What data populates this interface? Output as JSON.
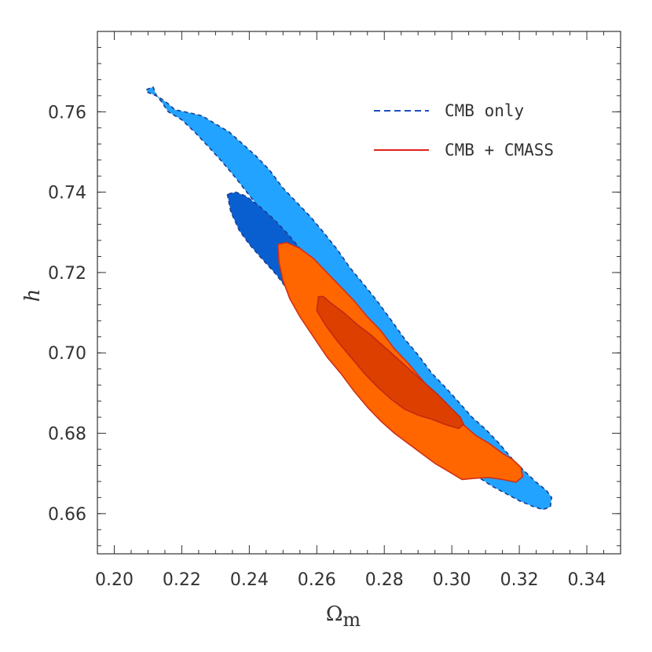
{
  "chart_data": {
    "type": "contour",
    "xlabel": "Ω",
    "xlabel_sub": "m",
    "ylabel": "h",
    "xlim": [
      0.195,
      0.35
    ],
    "ylim": [
      0.65,
      0.78
    ],
    "xticks": [
      0.2,
      0.22,
      0.24,
      0.26,
      0.28,
      0.3,
      0.32,
      0.34
    ],
    "xtick_labels": [
      "0.20",
      "0.22",
      "0.24",
      "0.26",
      "0.28",
      "0.30",
      "0.32",
      "0.34"
    ],
    "yticks": [
      0.66,
      0.68,
      0.7,
      0.72,
      0.74,
      0.76
    ],
    "ytick_labels": [
      "0.66",
      "0.68",
      "0.70",
      "0.72",
      "0.74",
      "0.76"
    ],
    "legend_position": "top-right",
    "legend": [
      {
        "label": "CMB only",
        "style": "dashed",
        "color": "#1c4fbf"
      },
      {
        "label": "CMB + CMASS",
        "style": "solid",
        "color": "#e0201a"
      }
    ],
    "series": [
      {
        "name": "CMB only",
        "level": "outer",
        "fill": "#22a3ff",
        "stroke": "#1c3e8f",
        "dash": true,
        "points": [
          [
            0.2095,
            0.7655
          ],
          [
            0.2115,
            0.7662
          ],
          [
            0.2125,
            0.764
          ],
          [
            0.214,
            0.7625
          ],
          [
            0.216,
            0.76
          ],
          [
            0.22,
            0.758
          ],
          [
            0.224,
            0.7548
          ],
          [
            0.228,
            0.7512
          ],
          [
            0.232,
            0.7475
          ],
          [
            0.236,
            0.7435
          ],
          [
            0.24,
            0.7392
          ],
          [
            0.244,
            0.735
          ],
          [
            0.248,
            0.73
          ],
          [
            0.252,
            0.7245
          ],
          [
            0.256,
            0.719
          ],
          [
            0.26,
            0.7132
          ],
          [
            0.264,
            0.708
          ],
          [
            0.268,
            0.7025
          ],
          [
            0.272,
            0.6975
          ],
          [
            0.276,
            0.6935
          ],
          [
            0.28,
            0.6905
          ],
          [
            0.284,
            0.687
          ],
          [
            0.288,
            0.6835
          ],
          [
            0.292,
            0.68
          ],
          [
            0.296,
            0.677
          ],
          [
            0.3,
            0.674
          ],
          [
            0.304,
            0.6712
          ],
          [
            0.308,
            0.669
          ],
          [
            0.312,
            0.6668
          ],
          [
            0.316,
            0.665
          ],
          [
            0.32,
            0.6632
          ],
          [
            0.324,
            0.6618
          ],
          [
            0.327,
            0.661
          ],
          [
            0.3292,
            0.6617
          ],
          [
            0.3296,
            0.664
          ],
          [
            0.328,
            0.6658
          ],
          [
            0.325,
            0.6678
          ],
          [
            0.322,
            0.6702
          ],
          [
            0.318,
            0.6735
          ],
          [
            0.314,
            0.6775
          ],
          [
            0.31,
            0.681
          ],
          [
            0.306,
            0.684
          ],
          [
            0.302,
            0.6878
          ],
          [
            0.298,
            0.6915
          ],
          [
            0.294,
            0.695
          ],
          [
            0.29,
            0.6995
          ],
          [
            0.286,
            0.7035
          ],
          [
            0.282,
            0.7082
          ],
          [
            0.278,
            0.7128
          ],
          [
            0.274,
            0.717
          ],
          [
            0.27,
            0.721
          ],
          [
            0.266,
            0.7258
          ],
          [
            0.262,
            0.73
          ],
          [
            0.258,
            0.734
          ],
          [
            0.254,
            0.7375
          ],
          [
            0.25,
            0.741
          ],
          [
            0.246,
            0.7455
          ],
          [
            0.242,
            0.749
          ],
          [
            0.238,
            0.752
          ],
          [
            0.234,
            0.755
          ],
          [
            0.23,
            0.757
          ],
          [
            0.226,
            0.759
          ],
          [
            0.222,
            0.7598
          ],
          [
            0.218,
            0.7605
          ],
          [
            0.216,
            0.762
          ],
          [
            0.213,
            0.7638
          ],
          [
            0.21,
            0.7648
          ]
        ]
      },
      {
        "name": "CMB only",
        "level": "inner",
        "fill": "#0a5fd0",
        "stroke": "#1c3e8f",
        "dash": true,
        "points": [
          [
            0.2335,
            0.7395
          ],
          [
            0.2345,
            0.7352
          ],
          [
            0.237,
            0.7305
          ],
          [
            0.24,
            0.727
          ],
          [
            0.244,
            0.7232
          ],
          [
            0.248,
            0.7195
          ],
          [
            0.252,
            0.715
          ],
          [
            0.256,
            0.7105
          ],
          [
            0.26,
            0.706
          ],
          [
            0.264,
            0.7008
          ],
          [
            0.268,
            0.696
          ],
          [
            0.272,
            0.6925
          ],
          [
            0.276,
            0.6905
          ],
          [
            0.28,
            0.6885
          ],
          [
            0.284,
            0.6862
          ],
          [
            0.288,
            0.684
          ],
          [
            0.292,
            0.6825
          ],
          [
            0.296,
            0.6815
          ],
          [
            0.3,
            0.6812
          ],
          [
            0.3015,
            0.6818
          ],
          [
            0.301,
            0.6835
          ],
          [
            0.298,
            0.686
          ],
          [
            0.295,
            0.689
          ],
          [
            0.291,
            0.6925
          ],
          [
            0.287,
            0.696
          ],
          [
            0.283,
            0.6995
          ],
          [
            0.279,
            0.703
          ],
          [
            0.275,
            0.7065
          ],
          [
            0.271,
            0.71
          ],
          [
            0.267,
            0.714
          ],
          [
            0.263,
            0.718
          ],
          [
            0.259,
            0.722
          ],
          [
            0.255,
            0.726
          ],
          [
            0.251,
            0.73
          ],
          [
            0.247,
            0.7335
          ],
          [
            0.243,
            0.7365
          ],
          [
            0.239,
            0.739
          ],
          [
            0.236,
            0.74
          ]
        ]
      },
      {
        "name": "CMB + CMASS",
        "level": "outer",
        "fill": "#ff6600",
        "stroke": "#d03018",
        "dash": false,
        "points": [
          [
            0.2485,
            0.727
          ],
          [
            0.2488,
            0.7225
          ],
          [
            0.25,
            0.718
          ],
          [
            0.252,
            0.7135
          ],
          [
            0.255,
            0.709
          ],
          [
            0.259,
            0.704
          ],
          [
            0.263,
            0.699
          ],
          [
            0.267,
            0.695
          ],
          [
            0.271,
            0.6905
          ],
          [
            0.275,
            0.6865
          ],
          [
            0.279,
            0.683
          ],
          [
            0.283,
            0.68
          ],
          [
            0.287,
            0.6775
          ],
          [
            0.291,
            0.675
          ],
          [
            0.295,
            0.6725
          ],
          [
            0.299,
            0.6705
          ],
          [
            0.303,
            0.6685
          ],
          [
            0.307,
            0.6688
          ],
          [
            0.311,
            0.669
          ],
          [
            0.315,
            0.6685
          ],
          [
            0.319,
            0.6678
          ],
          [
            0.321,
            0.6692
          ],
          [
            0.3205,
            0.6715
          ],
          [
            0.318,
            0.6735
          ],
          [
            0.315,
            0.675
          ],
          [
            0.311,
            0.6775
          ],
          [
            0.307,
            0.6795
          ],
          [
            0.303,
            0.6825
          ],
          [
            0.299,
            0.686
          ],
          [
            0.295,
            0.6895
          ],
          [
            0.291,
            0.6935
          ],
          [
            0.287,
            0.6975
          ],
          [
            0.283,
            0.701
          ],
          [
            0.279,
            0.7055
          ],
          [
            0.275,
            0.709
          ],
          [
            0.271,
            0.713
          ],
          [
            0.267,
            0.7165
          ],
          [
            0.263,
            0.72
          ],
          [
            0.259,
            0.7235
          ],
          [
            0.255,
            0.726
          ],
          [
            0.251,
            0.7275
          ]
        ]
      },
      {
        "name": "CMB + CMASS",
        "level": "inner",
        "fill": "#dd3f00",
        "stroke": "#c22a14",
        "dash": false,
        "points": [
          [
            0.2605,
            0.714
          ],
          [
            0.26,
            0.7105
          ],
          [
            0.2625,
            0.707
          ],
          [
            0.266,
            0.703
          ],
          [
            0.27,
            0.699
          ],
          [
            0.274,
            0.695
          ],
          [
            0.278,
            0.6915
          ],
          [
            0.282,
            0.6885
          ],
          [
            0.286,
            0.686
          ],
          [
            0.29,
            0.6845
          ],
          [
            0.294,
            0.6835
          ],
          [
            0.298,
            0.6822
          ],
          [
            0.302,
            0.6812
          ],
          [
            0.3035,
            0.6822
          ],
          [
            0.3025,
            0.684
          ],
          [
            0.2995,
            0.6865
          ],
          [
            0.296,
            0.6895
          ],
          [
            0.292,
            0.6925
          ],
          [
            0.288,
            0.6955
          ],
          [
            0.284,
            0.6985
          ],
          [
            0.28,
            0.7015
          ],
          [
            0.276,
            0.7045
          ],
          [
            0.272,
            0.707
          ],
          [
            0.268,
            0.71
          ],
          [
            0.264,
            0.7125
          ],
          [
            0.262,
            0.714
          ]
        ]
      }
    ]
  }
}
